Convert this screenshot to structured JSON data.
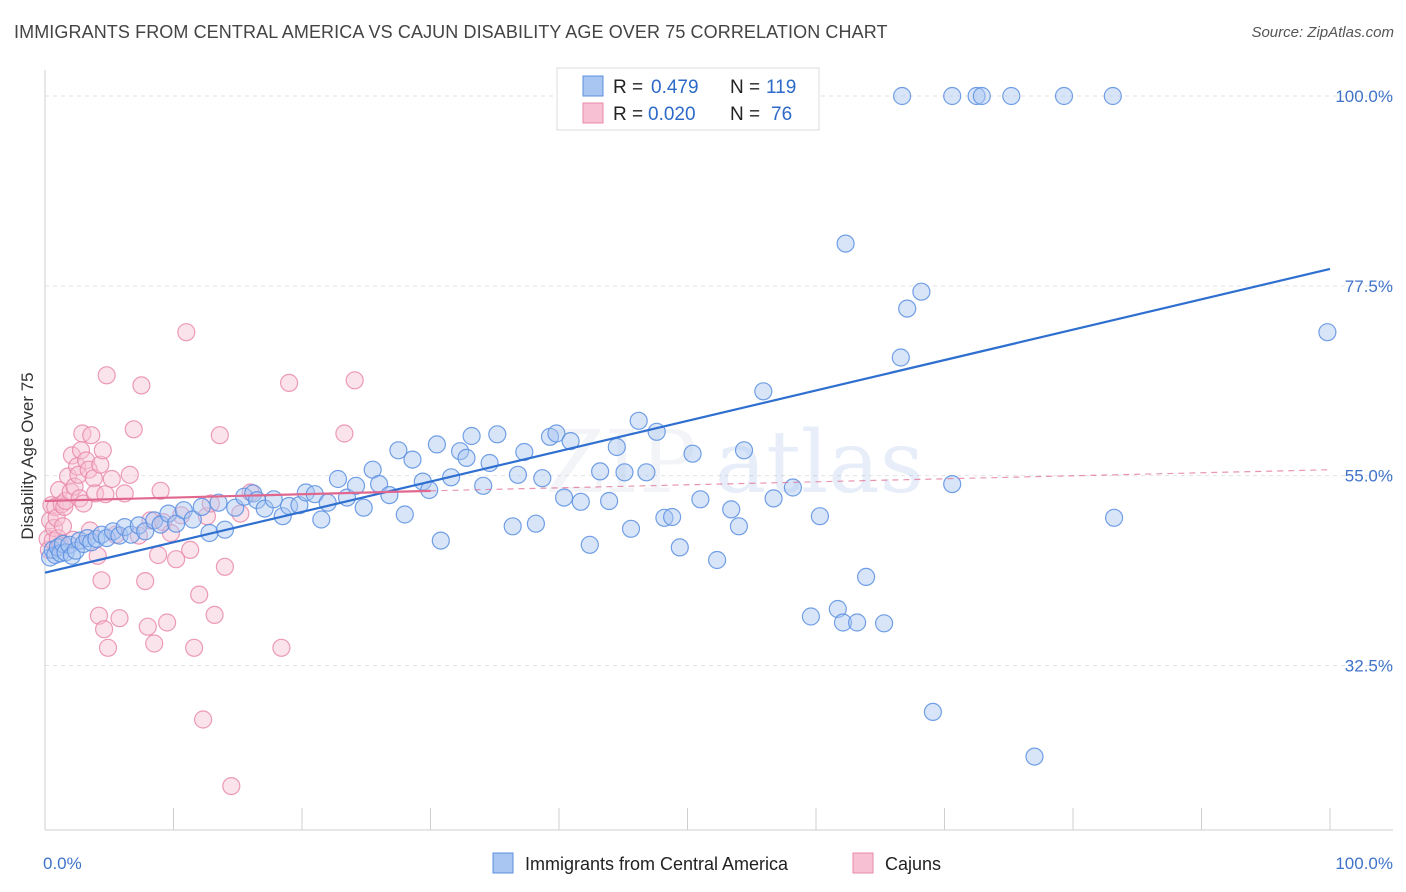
{
  "title": "IMMIGRANTS FROM CENTRAL AMERICA VS CAJUN DISABILITY AGE OVER 75 CORRELATION CHART",
  "source": "Source: ZipAtlas.com",
  "watermark": {
    "zip": "ZIP",
    "atlas": "atlas"
  },
  "colors": {
    "blue": "#5b8fe0",
    "blue_fill": "#a9c6f2",
    "pink": "#e98aab",
    "pink_fill": "#f7c0d3",
    "blue_line": "#2f6fd0",
    "pink_line": "#e0688f",
    "tick": "#3f73c9"
  },
  "legend": {
    "r_label": "R =",
    "n_label": "N =",
    "rows": [
      {
        "r": "0.479",
        "n": "119"
      },
      {
        "r": "0.020",
        "n": "76"
      }
    ]
  },
  "chart_data": {
    "type": "scatter",
    "ylabel": "Disability Age Over 75",
    "xlim": [
      0,
      100
    ],
    "ylim": [
      13,
      100
    ],
    "x_tick_labels": [
      "0.0%",
      "100.0%"
    ],
    "y_ticks": [
      {
        "value": 100,
        "label": "100.0%"
      },
      {
        "value": 77.5,
        "label": "77.5%"
      },
      {
        "value": 55,
        "label": "55.0%"
      },
      {
        "value": 32.5,
        "label": "32.5%"
      }
    ],
    "series": [
      {
        "name": "Immigrants from Central America",
        "trend": {
          "x": [
            0,
            100
          ],
          "y": [
            43.5,
            79.5
          ]
        },
        "points": [
          [
            0.4,
            45.3
          ],
          [
            0.6,
            46.2
          ],
          [
            0.8,
            45.6
          ],
          [
            1.0,
            46.5
          ],
          [
            1.2,
            45.8
          ],
          [
            1.4,
            46.9
          ],
          [
            1.6,
            45.9
          ],
          [
            1.9,
            46.8
          ],
          [
            2.1,
            45.5
          ],
          [
            2.4,
            46.1
          ],
          [
            2.7,
            47.3
          ],
          [
            3.0,
            46.9
          ],
          [
            3.3,
            47.6
          ],
          [
            3.6,
            47.1
          ],
          [
            4.0,
            47.5
          ],
          [
            4.4,
            48.0
          ],
          [
            4.8,
            47.6
          ],
          [
            5.3,
            48.4
          ],
          [
            5.8,
            47.9
          ],
          [
            6.2,
            48.9
          ],
          [
            6.7,
            48.0
          ],
          [
            7.3,
            49.1
          ],
          [
            7.8,
            48.4
          ],
          [
            8.5,
            49.7
          ],
          [
            9.0,
            49.2
          ],
          [
            9.6,
            50.5
          ],
          [
            10.2,
            49.3
          ],
          [
            10.8,
            50.9
          ],
          [
            11.5,
            49.8
          ],
          [
            12.2,
            51.3
          ],
          [
            12.8,
            48.2
          ],
          [
            13.5,
            51.8
          ],
          [
            14.0,
            48.6
          ],
          [
            14.8,
            51.2
          ],
          [
            15.5,
            52.5
          ],
          [
            16.2,
            52.9
          ],
          [
            16.5,
            52.1
          ],
          [
            17.1,
            51.1
          ],
          [
            17.8,
            52.2
          ],
          [
            18.5,
            50.2
          ],
          [
            19.0,
            51.4
          ],
          [
            19.8,
            51.5
          ],
          [
            20.3,
            53.0
          ],
          [
            21.0,
            52.8
          ],
          [
            21.5,
            49.8
          ],
          [
            22.0,
            51.8
          ],
          [
            22.8,
            54.6
          ],
          [
            23.5,
            52.4
          ],
          [
            24.2,
            53.8
          ],
          [
            24.8,
            51.2
          ],
          [
            25.5,
            55.7
          ],
          [
            26.0,
            54.0
          ],
          [
            26.8,
            52.7
          ],
          [
            27.5,
            58.0
          ],
          [
            28.0,
            50.4
          ],
          [
            28.6,
            56.9
          ],
          [
            29.4,
            54.3
          ],
          [
            29.9,
            53.3
          ],
          [
            30.5,
            58.7
          ],
          [
            30.8,
            47.3
          ],
          [
            31.6,
            54.8
          ],
          [
            32.3,
            57.9
          ],
          [
            32.8,
            57.1
          ],
          [
            33.2,
            59.7
          ],
          [
            34.1,
            53.8
          ],
          [
            34.6,
            56.5
          ],
          [
            35.2,
            59.9
          ],
          [
            36.4,
            49.0
          ],
          [
            36.8,
            55.1
          ],
          [
            37.3,
            57.8
          ],
          [
            38.2,
            49.3
          ],
          [
            38.7,
            54.7
          ],
          [
            39.3,
            59.6
          ],
          [
            39.8,
            60.0
          ],
          [
            40.4,
            52.4
          ],
          [
            40.9,
            59.1
          ],
          [
            41.7,
            51.9
          ],
          [
            42.4,
            46.8
          ],
          [
            43.2,
            55.5
          ],
          [
            43.9,
            52.0
          ],
          [
            44.5,
            58.4
          ],
          [
            45.1,
            55.4
          ],
          [
            45.6,
            48.7
          ],
          [
            46.2,
            61.5
          ],
          [
            46.8,
            55.4
          ],
          [
            47.6,
            60.2
          ],
          [
            48.2,
            50.0
          ],
          [
            48.8,
            50.1
          ],
          [
            49.4,
            46.5
          ],
          [
            50.4,
            57.6
          ],
          [
            51.0,
            52.2
          ],
          [
            52.3,
            45.0
          ],
          [
            53.4,
            51.0
          ],
          [
            54.0,
            49.0
          ],
          [
            54.4,
            58.0
          ],
          [
            55.9,
            65.0
          ],
          [
            56.7,
            52.3
          ],
          [
            58.2,
            53.6
          ],
          [
            59.6,
            38.3
          ],
          [
            60.3,
            50.2
          ],
          [
            61.7,
            39.2
          ],
          [
            62.1,
            37.6
          ],
          [
            62.3,
            82.5
          ],
          [
            63.2,
            37.6
          ],
          [
            63.9,
            43.0
          ],
          [
            65.3,
            37.5
          ],
          [
            66.6,
            69.0
          ],
          [
            67.1,
            74.8
          ],
          [
            68.2,
            76.8
          ],
          [
            69.1,
            27.0
          ],
          [
            70.6,
            54.0
          ],
          [
            66.7,
            100.0
          ],
          [
            70.6,
            100.0
          ],
          [
            72.5,
            100.0
          ],
          [
            72.9,
            100.0
          ],
          [
            75.2,
            100.0
          ],
          [
            79.3,
            100.0
          ],
          [
            83.1,
            100.0
          ],
          [
            77.0,
            21.7
          ],
          [
            83.2,
            50.0
          ],
          [
            99.8,
            72.0
          ]
        ]
      },
      {
        "name": "Cajuns",
        "trend": {
          "x": [
            0,
            30
          ],
          "y": [
            52.0,
            53.2
          ],
          "dashed_to": {
            "x": 100,
            "y": 55.7
          }
        },
        "points": [
          [
            0.2,
            47.5
          ],
          [
            0.3,
            46.2
          ],
          [
            0.4,
            49.7
          ],
          [
            0.5,
            51.5
          ],
          [
            0.6,
            47.3
          ],
          [
            0.7,
            48.8
          ],
          [
            0.8,
            51.3
          ],
          [
            0.9,
            50.0
          ],
          [
            1.0,
            47.6
          ],
          [
            1.1,
            53.3
          ],
          [
            1.2,
            46.7
          ],
          [
            1.3,
            51.6
          ],
          [
            1.4,
            49.0
          ],
          [
            1.5,
            51.3
          ],
          [
            1.6,
            52.0
          ],
          [
            1.8,
            54.9
          ],
          [
            2.0,
            53.1
          ],
          [
            2.1,
            57.4
          ],
          [
            2.2,
            47.4
          ],
          [
            2.3,
            53.7
          ],
          [
            2.5,
            56.1
          ],
          [
            2.6,
            55.1
          ],
          [
            2.7,
            52.3
          ],
          [
            2.8,
            58.0
          ],
          [
            2.9,
            60.0
          ],
          [
            3.0,
            51.7
          ],
          [
            3.2,
            56.8
          ],
          [
            3.4,
            55.7
          ],
          [
            3.5,
            48.5
          ],
          [
            3.6,
            59.8
          ],
          [
            3.8,
            54.7
          ],
          [
            3.9,
            52.9
          ],
          [
            4.1,
            45.5
          ],
          [
            4.2,
            38.4
          ],
          [
            4.3,
            56.3
          ],
          [
            4.4,
            42.6
          ],
          [
            4.5,
            58.0
          ],
          [
            4.6,
            36.8
          ],
          [
            4.7,
            52.8
          ],
          [
            4.8,
            66.9
          ],
          [
            4.9,
            34.6
          ],
          [
            5.2,
            54.6
          ],
          [
            5.5,
            48.0
          ],
          [
            5.8,
            38.1
          ],
          [
            6.2,
            52.9
          ],
          [
            6.6,
            55.1
          ],
          [
            6.9,
            60.5
          ],
          [
            7.3,
            47.9
          ],
          [
            7.5,
            65.7
          ],
          [
            7.8,
            42.5
          ],
          [
            8.0,
            37.1
          ],
          [
            8.2,
            49.7
          ],
          [
            8.5,
            35.1
          ],
          [
            8.8,
            45.6
          ],
          [
            9.0,
            53.2
          ],
          [
            9.2,
            49.5
          ],
          [
            9.5,
            37.6
          ],
          [
            9.8,
            48.2
          ],
          [
            10.2,
            45.1
          ],
          [
            10.6,
            50.3
          ],
          [
            11.0,
            72.0
          ],
          [
            11.3,
            46.2
          ],
          [
            11.6,
            34.6
          ],
          [
            12.0,
            40.9
          ],
          [
            12.3,
            26.1
          ],
          [
            12.6,
            50.2
          ],
          [
            12.9,
            51.7
          ],
          [
            13.2,
            38.5
          ],
          [
            13.6,
            59.8
          ],
          [
            14.0,
            44.2
          ],
          [
            14.5,
            18.2
          ],
          [
            15.2,
            50.5
          ],
          [
            16.0,
            53.0
          ],
          [
            18.4,
            34.6
          ],
          [
            19.0,
            66.0
          ],
          [
            23.3,
            60.0
          ],
          [
            24.1,
            66.3
          ]
        ]
      }
    ]
  }
}
